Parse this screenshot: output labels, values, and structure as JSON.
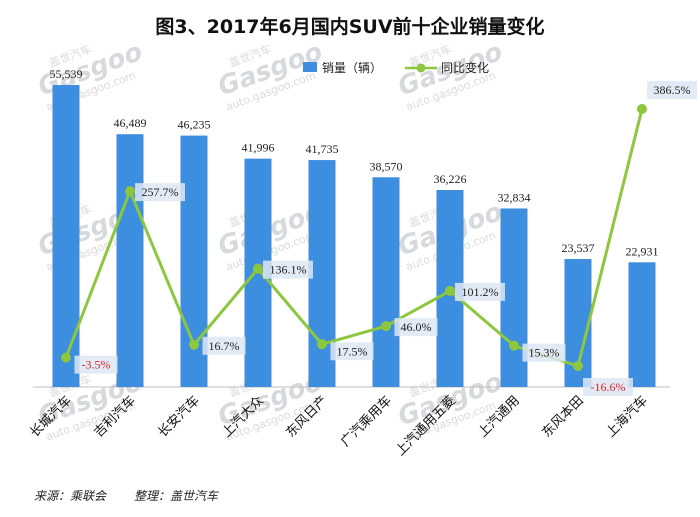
{
  "title": "图3、2017年6月国内SUV前十企业销量变化",
  "source_text": "来源：乘联会",
  "organizer_text": "整理：盖世汽车",
  "watermark": {
    "brand": "Gasgoo",
    "cn": "盖世汽车",
    "url": "auto.gasgoo.com"
  },
  "colors": {
    "bar": "#3d8ede",
    "line": "#8dc63f",
    "positive_label": "#222222",
    "negative_label": "#d9262b",
    "label_bg": "#dde7f3"
  },
  "chart_data": {
    "type": "bar",
    "title": "图3、2017年6月国内SUV前十企业销量变化",
    "categories": [
      "长城汽车",
      "吉利汽车",
      "长安汽车",
      "上汽大众",
      "东风日产",
      "广汽乘用车",
      "上汽通用五菱",
      "上汽通用",
      "东风本田",
      "上海汽车"
    ],
    "series": [
      {
        "name": "销量（辆）",
        "type": "bar",
        "axis": "left",
        "values": [
          55539,
          46489,
          46235,
          41996,
          41735,
          38570,
          36226,
          32834,
          23537,
          22931
        ],
        "labels": [
          "55,539",
          "46,489",
          "46,235",
          "41,996",
          "41,735",
          "38,570",
          "36,226",
          "32,834",
          "23,537",
          "22,931"
        ]
      },
      {
        "name": "同比变化",
        "type": "line",
        "axis": "right",
        "values": [
          -3.5,
          257.7,
          16.7,
          136.1,
          17.5,
          46.0,
          101.2,
          15.3,
          -16.6,
          386.5
        ],
        "labels": [
          "-3.5%",
          "257.7%",
          "16.7%",
          "136.1%",
          "17.5%",
          "46.0%",
          "101.2%",
          "15.3%",
          "-16.6%",
          "386.5%"
        ]
      }
    ],
    "ylim_left": [
      0,
      60000
    ],
    "ylim_right": [
      -30,
      400
    ],
    "grid": false,
    "legend": "top"
  }
}
